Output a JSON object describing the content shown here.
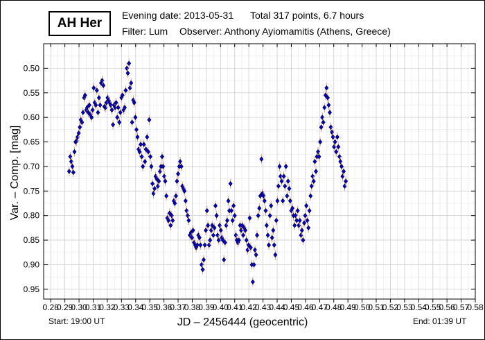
{
  "header": {
    "star": "AH Her",
    "evening_date": "Evening date: 2013-05-31",
    "total": "Total 317 points, 6.7 hours",
    "filter": "Filter: Lum",
    "observer": "Observer: Anthony Ayiomamitis (Athens, Greece)"
  },
  "footer": {
    "start": "Start: 19:00 UT",
    "end": "End: 01:39 UT"
  },
  "chart_data": {
    "type": "scatter",
    "title": "AH Her",
    "xlabel": "JD – 2456444  (geocentric)",
    "ylabel": "Var. – Comp. [mag]",
    "xlim": [
      0.275,
      0.58
    ],
    "ylim": [
      0.45,
      0.97
    ],
    "y_inverted": true,
    "grid": true,
    "x_ticks": [
      "0.28",
      "0.29",
      "0.30",
      "0.31",
      "0.32",
      "0.33",
      "0.34",
      "0.35",
      "0.36",
      "0.37",
      "0.38",
      "0.39",
      "0.40",
      "0.41",
      "0.42",
      "0.43",
      "0.44",
      "0.45",
      "0.46",
      "0.47",
      "0.48",
      "0.49",
      "0.50",
      "0.51",
      "0.52",
      "0.53",
      "0.54",
      "0.55",
      "0.56",
      "0.57",
      "0.58"
    ],
    "y_ticks": [
      "0.50",
      "0.55",
      "0.60",
      "0.65",
      "0.70",
      "0.75",
      "0.80",
      "0.85",
      "0.90",
      "0.95"
    ],
    "marker_color": "#0000cc",
    "errorbar_color": "#d9a0a0",
    "points": [
      [
        0.293,
        0.71
      ],
      [
        0.2938,
        0.68
      ],
      [
        0.2945,
        0.69
      ],
      [
        0.2953,
        0.7
      ],
      [
        0.296,
        0.712
      ],
      [
        0.2968,
        0.67
      ],
      [
        0.2975,
        0.65
      ],
      [
        0.2983,
        0.648
      ],
      [
        0.299,
        0.64
      ],
      [
        0.2998,
        0.632
      ],
      [
        0.3006,
        0.62
      ],
      [
        0.3013,
        0.605
      ],
      [
        0.3021,
        0.61
      ],
      [
        0.3028,
        0.59
      ],
      [
        0.3036,
        0.56
      ],
      [
        0.3043,
        0.555
      ],
      [
        0.3051,
        0.585
      ],
      [
        0.3058,
        0.58
      ],
      [
        0.3066,
        0.59
      ],
      [
        0.3073,
        0.575
      ],
      [
        0.3081,
        0.595
      ],
      [
        0.3089,
        0.6
      ],
      [
        0.3096,
        0.585
      ],
      [
        0.3104,
        0.54
      ],
      [
        0.3111,
        0.57
      ],
      [
        0.3119,
        0.575
      ],
      [
        0.3126,
        0.545
      ],
      [
        0.3134,
        0.59
      ],
      [
        0.3141,
        0.56
      ],
      [
        0.3149,
        0.575
      ],
      [
        0.3156,
        0.53
      ],
      [
        0.3164,
        0.525
      ],
      [
        0.3172,
        0.535
      ],
      [
        0.3179,
        0.578
      ],
      [
        0.3187,
        0.58
      ],
      [
        0.3194,
        0.57
      ],
      [
        0.3202,
        0.56
      ],
      [
        0.3209,
        0.565
      ],
      [
        0.3217,
        0.57
      ],
      [
        0.3224,
        0.575
      ],
      [
        0.3232,
        0.585
      ],
      [
        0.324,
        0.615
      ],
      [
        0.3247,
        0.575
      ],
      [
        0.3255,
        0.58
      ],
      [
        0.3262,
        0.57
      ],
      [
        0.327,
        0.6
      ],
      [
        0.3277,
        0.58
      ],
      [
        0.3285,
        0.61
      ],
      [
        0.3292,
        0.59
      ],
      [
        0.33,
        0.56
      ],
      [
        0.3307,
        0.555
      ],
      [
        0.3315,
        0.585
      ],
      [
        0.3323,
        0.58
      ],
      [
        0.333,
        0.545
      ],
      [
        0.3338,
        0.5
      ],
      [
        0.3345,
        0.51
      ],
      [
        0.3353,
        0.49
      ],
      [
        0.336,
        0.54
      ],
      [
        0.3368,
        0.53
      ],
      [
        0.3375,
        0.61
      ],
      [
        0.3383,
        0.565
      ],
      [
        0.339,
        0.57
      ],
      [
        0.3398,
        0.6
      ],
      [
        0.3406,
        0.625
      ],
      [
        0.3413,
        0.64
      ],
      [
        0.3421,
        0.665
      ],
      [
        0.3428,
        0.67
      ],
      [
        0.3436,
        0.655
      ],
      [
        0.3443,
        0.68
      ],
      [
        0.3451,
        0.7
      ],
      [
        0.3458,
        0.655
      ],
      [
        0.3466,
        0.69
      ],
      [
        0.3473,
        0.665
      ],
      [
        0.3481,
        0.64
      ],
      [
        0.3489,
        0.67
      ],
      [
        0.3496,
        0.605
      ],
      [
        0.3504,
        0.68
      ],
      [
        0.3511,
        0.7
      ],
      [
        0.3519,
        0.735
      ],
      [
        0.3526,
        0.755
      ],
      [
        0.3534,
        0.745
      ],
      [
        0.3541,
        0.72
      ],
      [
        0.3549,
        0.725
      ],
      [
        0.3557,
        0.74
      ],
      [
        0.3564,
        0.73
      ],
      [
        0.3572,
        0.71
      ],
      [
        0.3579,
        0.7
      ],
      [
        0.3587,
        0.68
      ],
      [
        0.3594,
        0.7
      ],
      [
        0.3602,
        0.72
      ],
      [
        0.3609,
        0.73
      ],
      [
        0.3617,
        0.76
      ],
      [
        0.3624,
        0.805
      ],
      [
        0.3632,
        0.81
      ],
      [
        0.364,
        0.795
      ],
      [
        0.3647,
        0.82
      ],
      [
        0.3655,
        0.8
      ],
      [
        0.3662,
        0.81
      ],
      [
        0.367,
        0.77
      ],
      [
        0.3677,
        0.775
      ],
      [
        0.3685,
        0.76
      ],
      [
        0.3692,
        0.73
      ],
      [
        0.37,
        0.715
      ],
      [
        0.3708,
        0.7
      ],
      [
        0.3715,
        0.69
      ],
      [
        0.3723,
        0.7
      ],
      [
        0.373,
        0.74
      ],
      [
        0.3738,
        0.745
      ],
      [
        0.3745,
        0.75
      ],
      [
        0.3753,
        0.77
      ],
      [
        0.376,
        0.79
      ],
      [
        0.3768,
        0.8
      ],
      [
        0.3775,
        0.81
      ],
      [
        0.3783,
        0.84
      ],
      [
        0.3791,
        0.835
      ],
      [
        0.3798,
        0.845
      ],
      [
        0.3806,
        0.83
      ],
      [
        0.3813,
        0.855
      ],
      [
        0.3821,
        0.86
      ],
      [
        0.3828,
        0.865
      ],
      [
        0.3836,
        0.86
      ],
      [
        0.3843,
        0.84
      ],
      [
        0.3851,
        0.845
      ],
      [
        0.3858,
        0.86
      ],
      [
        0.3866,
        0.9
      ],
      [
        0.3874,
        0.91
      ],
      [
        0.3881,
        0.89
      ],
      [
        0.3889,
        0.86
      ],
      [
        0.3896,
        0.83
      ],
      [
        0.3904,
        0.79
      ],
      [
        0.3911,
        0.82
      ],
      [
        0.3919,
        0.86
      ],
      [
        0.3926,
        0.85
      ],
      [
        0.3934,
        0.83
      ],
      [
        0.3941,
        0.82
      ],
      [
        0.3949,
        0.84
      ],
      [
        0.3957,
        0.825
      ],
      [
        0.3964,
        0.78
      ],
      [
        0.3972,
        0.8
      ],
      [
        0.3979,
        0.84
      ],
      [
        0.3987,
        0.85
      ],
      [
        0.3994,
        0.82
      ],
      [
        0.4002,
        0.83
      ],
      [
        0.4009,
        0.845
      ],
      [
        0.4017,
        0.85
      ],
      [
        0.4024,
        0.89
      ],
      [
        0.4032,
        0.855
      ],
      [
        0.404,
        0.82
      ],
      [
        0.4047,
        0.81
      ],
      [
        0.4055,
        0.77
      ],
      [
        0.4062,
        0.79
      ],
      [
        0.407,
        0.735
      ],
      [
        0.4077,
        0.79
      ],
      [
        0.4085,
        0.81
      ],
      [
        0.4092,
        0.78
      ],
      [
        0.41,
        0.8
      ],
      [
        0.4108,
        0.84
      ],
      [
        0.4115,
        0.85
      ],
      [
        0.4123,
        0.855
      ],
      [
        0.413,
        0.85
      ],
      [
        0.4138,
        0.82
      ],
      [
        0.4145,
        0.83
      ],
      [
        0.4153,
        0.82
      ],
      [
        0.416,
        0.84
      ],
      [
        0.4168,
        0.825
      ],
      [
        0.4175,
        0.83
      ],
      [
        0.4183,
        0.85
      ],
      [
        0.4191,
        0.87
      ],
      [
        0.4198,
        0.86
      ],
      [
        0.4206,
        0.805
      ],
      [
        0.4213,
        0.865
      ],
      [
        0.4221,
        0.9
      ],
      [
        0.4228,
        0.935
      ],
      [
        0.4236,
        0.9
      ],
      [
        0.4243,
        0.87
      ],
      [
        0.4251,
        0.88
      ],
      [
        0.4258,
        0.84
      ],
      [
        0.4266,
        0.8
      ],
      [
        0.4274,
        0.785
      ],
      [
        0.4281,
        0.76
      ],
      [
        0.4289,
        0.685
      ],
      [
        0.4296,
        0.755
      ],
      [
        0.4304,
        0.76
      ],
      [
        0.4311,
        0.77
      ],
      [
        0.4319,
        0.79
      ],
      [
        0.4326,
        0.82
      ],
      [
        0.4334,
        0.84
      ],
      [
        0.4341,
        0.86
      ],
      [
        0.4349,
        0.8
      ],
      [
        0.4357,
        0.78
      ],
      [
        0.4364,
        0.845
      ],
      [
        0.4372,
        0.83
      ],
      [
        0.4379,
        0.86
      ],
      [
        0.4387,
        0.88
      ],
      [
        0.4394,
        0.81
      ],
      [
        0.4402,
        0.77
      ],
      [
        0.4409,
        0.74
      ],
      [
        0.4417,
        0.7
      ],
      [
        0.4424,
        0.72
      ],
      [
        0.4432,
        0.73
      ],
      [
        0.444,
        0.77
      ],
      [
        0.4447,
        0.72
      ],
      [
        0.4455,
        0.74
      ],
      [
        0.4462,
        0.7
      ],
      [
        0.447,
        0.76
      ],
      [
        0.4477,
        0.73
      ],
      [
        0.4485,
        0.745
      ],
      [
        0.4492,
        0.77
      ],
      [
        0.45,
        0.79
      ],
      [
        0.4508,
        0.785
      ],
      [
        0.4515,
        0.8
      ],
      [
        0.4523,
        0.82
      ],
      [
        0.453,
        0.8
      ],
      [
        0.4538,
        0.81
      ],
      [
        0.4545,
        0.79
      ],
      [
        0.4553,
        0.82
      ],
      [
        0.456,
        0.81
      ],
      [
        0.4568,
        0.84
      ],
      [
        0.4575,
        0.83
      ],
      [
        0.4583,
        0.85
      ],
      [
        0.4591,
        0.815
      ],
      [
        0.4598,
        0.8
      ],
      [
        0.4606,
        0.78
      ],
      [
        0.4613,
        0.81
      ],
      [
        0.4621,
        0.825
      ],
      [
        0.4628,
        0.79
      ],
      [
        0.4636,
        0.76
      ],
      [
        0.4643,
        0.74
      ],
      [
        0.4651,
        0.72
      ],
      [
        0.4658,
        0.73
      ],
      [
        0.4666,
        0.69
      ],
      [
        0.4674,
        0.71
      ],
      [
        0.4681,
        0.68
      ],
      [
        0.4689,
        0.67
      ],
      [
        0.4696,
        0.68
      ],
      [
        0.4704,
        0.65
      ],
      [
        0.4711,
        0.62
      ],
      [
        0.4719,
        0.6
      ],
      [
        0.4726,
        0.61
      ],
      [
        0.4734,
        0.58
      ],
      [
        0.4742,
        0.555
      ],
      [
        0.4749,
        0.54
      ],
      [
        0.4757,
        0.56
      ],
      [
        0.4764,
        0.575
      ],
      [
        0.4772,
        0.59
      ],
      [
        0.4779,
        0.62
      ],
      [
        0.4787,
        0.63
      ],
      [
        0.4794,
        0.64
      ],
      [
        0.4802,
        0.66
      ],
      [
        0.4809,
        0.65
      ],
      [
        0.4817,
        0.67
      ],
      [
        0.4825,
        0.64
      ],
      [
        0.4832,
        0.66
      ],
      [
        0.484,
        0.68
      ],
      [
        0.4847,
        0.69
      ],
      [
        0.4855,
        0.7
      ],
      [
        0.4862,
        0.72
      ],
      [
        0.487,
        0.71
      ],
      [
        0.4877,
        0.74
      ],
      [
        0.4885,
        0.73
      ]
    ]
  }
}
